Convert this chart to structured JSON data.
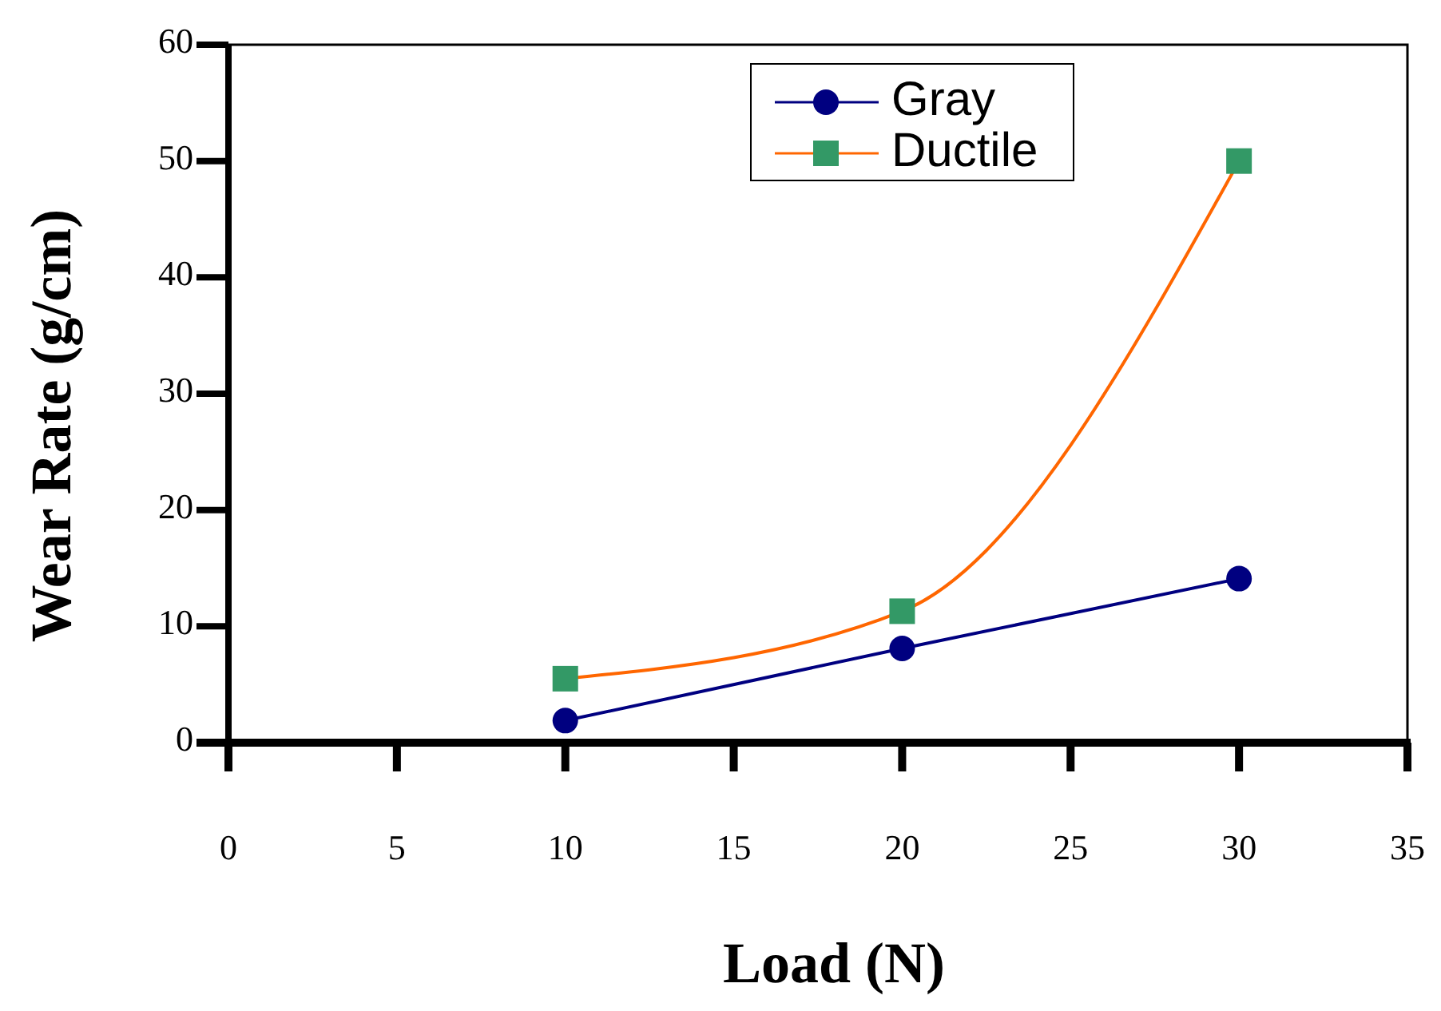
{
  "chart_data": {
    "type": "line",
    "xlabel": "Load (N)",
    "ylabel": "Wear Rate (g/cm)",
    "x": [
      10,
      20,
      30
    ],
    "series": [
      {
        "name": "Gray",
        "color": "#000080",
        "marker": "circle",
        "values": [
          1.9,
          8.1,
          14.1
        ]
      },
      {
        "name": "Ductile",
        "color": "#ff6600",
        "marker": "square",
        "values": [
          5.5,
          11.3,
          50
        ]
      }
    ],
    "xlim": [
      0,
      35
    ],
    "xticks": [
      0,
      5,
      10,
      15,
      20,
      25,
      30,
      35
    ],
    "ylim": [
      0,
      60
    ],
    "yticks": [
      0,
      10,
      20,
      30,
      40,
      50,
      60
    ],
    "legend": "top",
    "grid": false
  }
}
